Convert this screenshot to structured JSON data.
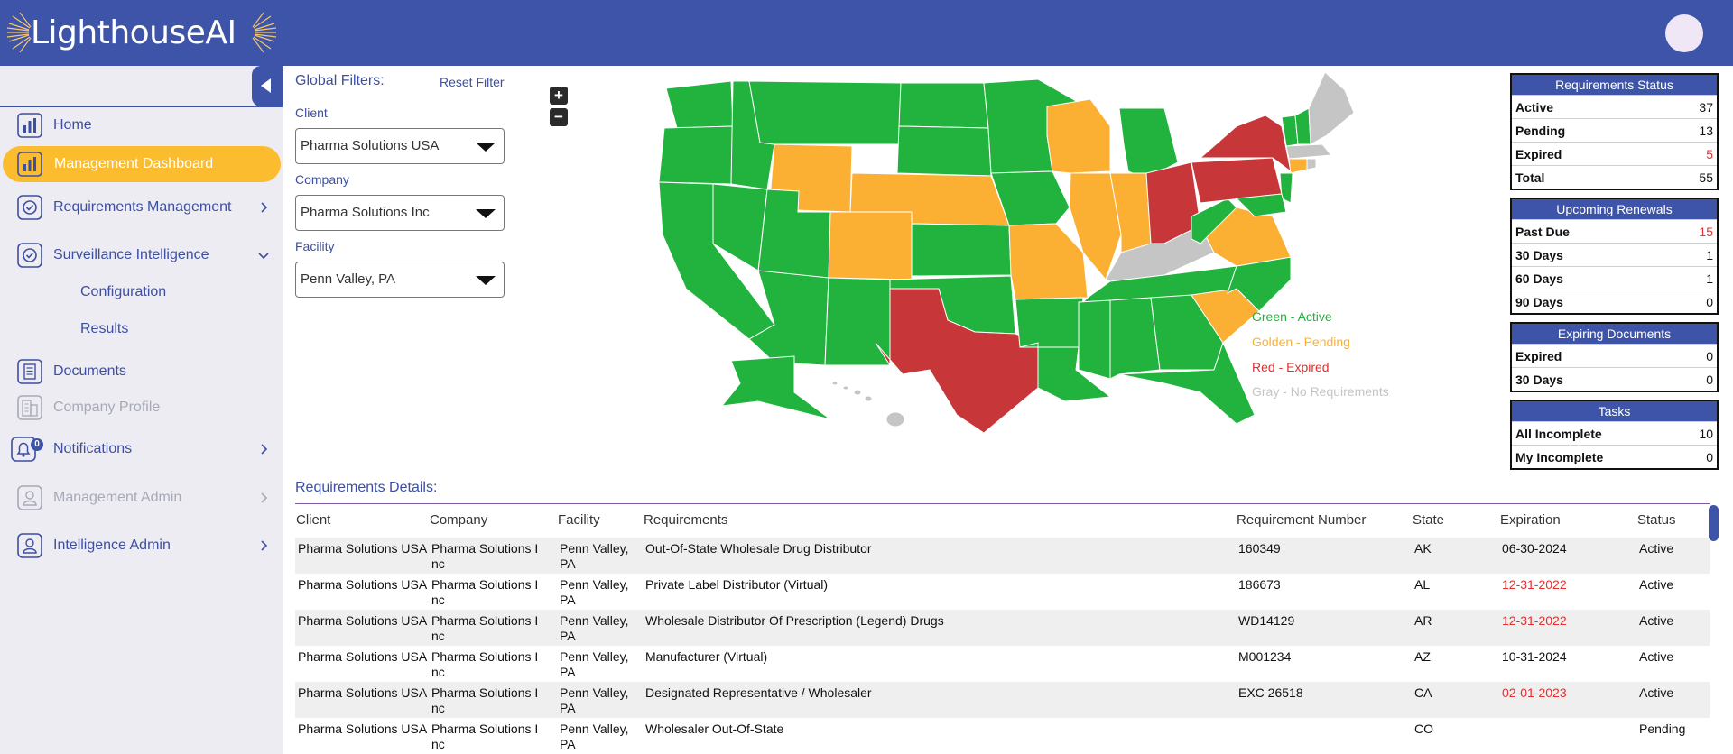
{
  "app": {
    "brand": "LighthouseAI"
  },
  "sidebar": {
    "items": [
      {
        "label": "Home"
      },
      {
        "label": "Management Dashboard"
      },
      {
        "label": "Requirements Management"
      },
      {
        "label": "Surveillance Intelligence"
      },
      {
        "label": "Configuration"
      },
      {
        "label": "Results"
      },
      {
        "label": "Documents"
      },
      {
        "label": "Company Profile"
      },
      {
        "label": "Notifications"
      },
      {
        "label": "Management Admin"
      },
      {
        "label": "Intelligence Admin"
      }
    ],
    "notification_count": "0"
  },
  "filters": {
    "title": "Global Filters:",
    "reset": "Reset Filter",
    "client_label": "Client",
    "client_value": "Pharma Solutions USA",
    "company_label": "Company",
    "company_value": "Pharma Solutions Inc",
    "facility_label": "Facility",
    "facility_value": "Penn Valley, PA"
  },
  "map": {
    "zoom_in": "+",
    "zoom_out": "−",
    "legend": [
      {
        "label": "Green - Active",
        "color": "#22b33f"
      },
      {
        "label": "Golden - Pending",
        "color": "#fbb034"
      },
      {
        "label": "Red - Expired",
        "color": "#c7373a"
      },
      {
        "label": "Gray - No Requirements",
        "color": "#c5c5c5"
      }
    ]
  },
  "status": {
    "requirements": {
      "title": "Requirements Status",
      "rows": [
        {
          "label": "Active",
          "value": "37"
        },
        {
          "label": "Pending",
          "value": "13"
        },
        {
          "label": "Expired",
          "value": "5"
        },
        {
          "label": "Total",
          "value": "55"
        }
      ]
    },
    "renewals": {
      "title": "Upcoming Renewals",
      "rows": [
        {
          "label": "Past Due",
          "value": "15"
        },
        {
          "label": "30 Days",
          "value": "1"
        },
        {
          "label": "60 Days",
          "value": "1"
        },
        {
          "label": "90 Days",
          "value": "0"
        }
      ]
    },
    "documents": {
      "title": "Expiring Documents",
      "rows": [
        {
          "label": "Expired",
          "value": "0"
        },
        {
          "label": "30 Days",
          "value": "0"
        }
      ]
    },
    "tasks": {
      "title": "Tasks",
      "rows": [
        {
          "label": "All Incomplete",
          "value": "10"
        },
        {
          "label": "My Incomplete",
          "value": "0"
        }
      ]
    }
  },
  "table": {
    "title": "Requirements Details:",
    "columns": [
      "Client",
      "Company",
      "Facility",
      "Requirements",
      "Requirement Number",
      "State",
      "Expiration",
      "Status"
    ],
    "rows": [
      {
        "client": "Pharma Solutions USA",
        "company": "Pharma Solutions Inc",
        "facility": "Penn Valley, PA",
        "requirement": "Out-Of-State Wholesale Drug Distributor",
        "number": "160349",
        "state": "AK",
        "expiration": "06-30-2024",
        "status": "Active"
      },
      {
        "client": "Pharma Solutions USA",
        "company": "Pharma Solutions Inc",
        "facility": "Penn Valley, PA",
        "requirement": "Private Label Distributor (Virtual)",
        "number": "186673",
        "state": "AL",
        "expiration": "12-31-2022",
        "status": "Active"
      },
      {
        "client": "Pharma Solutions USA",
        "company": "Pharma Solutions Inc",
        "facility": "Penn Valley, PA",
        "requirement": "Wholesale Distributor Of Prescription (Legend) Drugs",
        "number": "WD14129",
        "state": "AR",
        "expiration": "12-31-2022",
        "status": "Active"
      },
      {
        "client": "Pharma Solutions USA",
        "company": "Pharma Solutions Inc",
        "facility": "Penn Valley, PA",
        "requirement": "Manufacturer (Virtual)",
        "number": "M001234",
        "state": "AZ",
        "expiration": "10-31-2024",
        "status": "Active"
      },
      {
        "client": "Pharma Solutions USA",
        "company": "Pharma Solutions Inc",
        "facility": "Penn Valley, PA",
        "requirement": "Designated Representative / Wholesaler",
        "number": "EXC 26518",
        "state": "CA",
        "expiration": "02-01-2023",
        "status": "Active"
      },
      {
        "client": "Pharma Solutions USA",
        "company": "Pharma Solutions Inc",
        "facility": "Penn Valley, PA",
        "requirement": "Wholesaler Out-Of-State",
        "number": "",
        "state": "CO",
        "expiration": "",
        "status": "Pending"
      }
    ]
  }
}
